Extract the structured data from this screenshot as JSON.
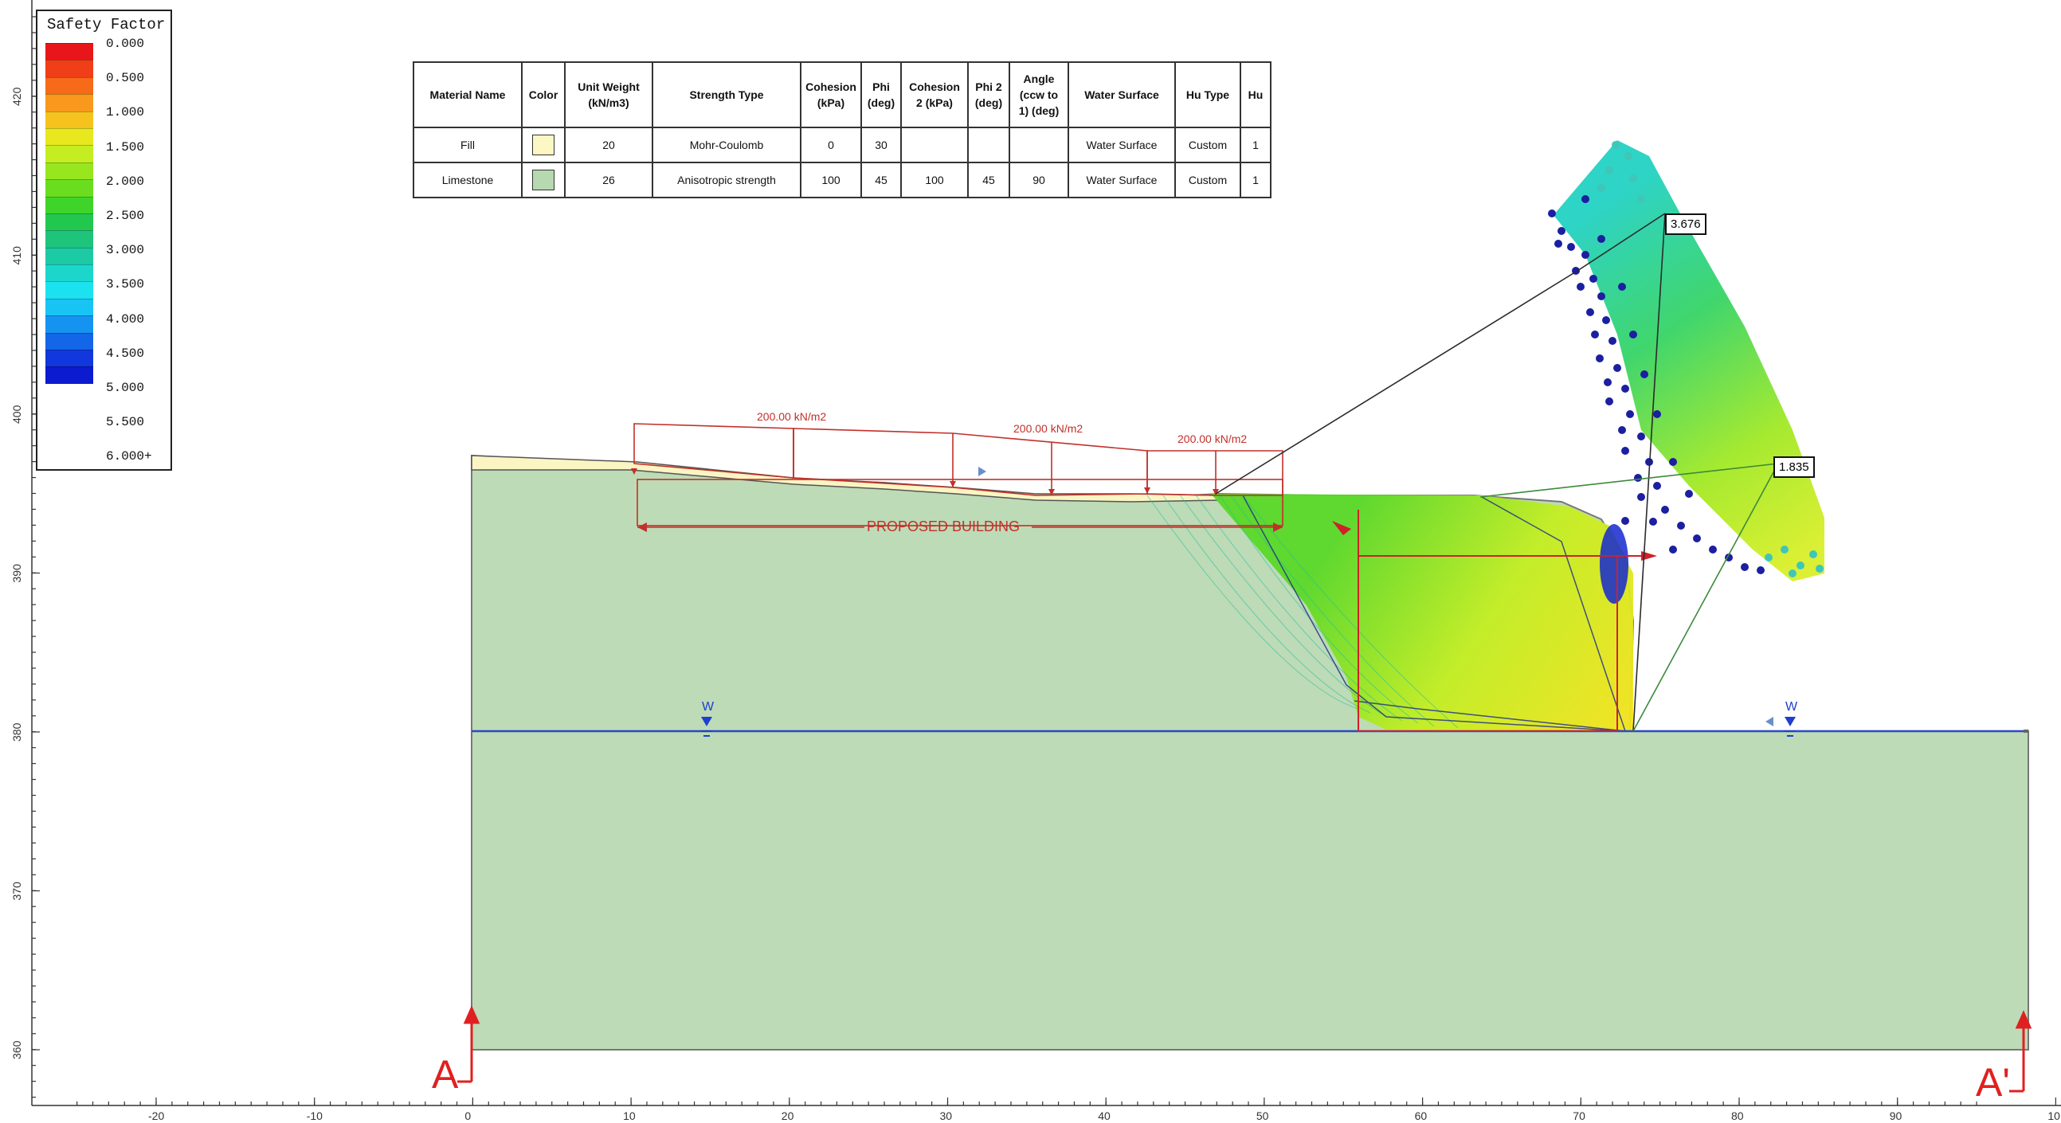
{
  "legend": {
    "title": "Safety Factor",
    "labels": [
      "0.000",
      "0.500",
      "1.000",
      "1.500",
      "2.000",
      "2.500",
      "3.000",
      "3.500",
      "4.000",
      "4.500",
      "5.000",
      "5.500",
      "6.000+"
    ],
    "colors": [
      "#e8161a",
      "#f03e18",
      "#f66a18",
      "#f8981c",
      "#f6c21e",
      "#e8e81e",
      "#c4ee22",
      "#98e61e",
      "#6ade1e",
      "#3ed42a",
      "#22c84e",
      "#1ec47a",
      "#1ccaa4",
      "#1cd6cc",
      "#1ce2f0",
      "#18c4f4",
      "#1494f0",
      "#1466e8",
      "#1038dc",
      "#0c1ad0"
    ]
  },
  "material_table": {
    "headers": [
      "Material Name",
      "Color",
      "Unit Weight (kN/m3)",
      "Strength Type",
      "Cohesion (kPa)",
      "Phi (deg)",
      "Cohesion 2 (kPa)",
      "Phi 2 (deg)",
      "Angle (ccw to 1) (deg)",
      "Water Surface",
      "Hu Type",
      "Hu"
    ],
    "rows": [
      {
        "name": "Fill",
        "color": "#fdf7c4",
        "unit_weight": "20",
        "strength_type": "Mohr-Coulomb",
        "cohesion": "0",
        "phi": "30",
        "cohesion2": "",
        "phi2": "",
        "angle": "",
        "water_surface": "Water Surface",
        "hu_type": "Custom",
        "hu": "1"
      },
      {
        "name": "Limestone",
        "color": "#b6d9b0",
        "unit_weight": "26",
        "strength_type": "Anisotropic strength",
        "cohesion": "100",
        "phi": "45",
        "cohesion2": "100",
        "phi2": "45",
        "angle": "90",
        "water_surface": "Water Surface",
        "hu_type": "Custom",
        "hu": "1"
      }
    ]
  },
  "loads": [
    "200.00 kN/m2",
    "200.00 kN/m2",
    "200.00 kN/m2"
  ],
  "building_label": "PROPOSED BUILDING",
  "factor_labels": [
    "3.676",
    "1.835"
  ],
  "water_markers": [
    "W",
    "W"
  ],
  "section_markers": [
    "A",
    "A'"
  ],
  "x_ticks": [
    "-20",
    "-10",
    "0",
    "10",
    "20",
    "30",
    "40",
    "50",
    "60",
    "70",
    "80",
    "90",
    "10"
  ],
  "y_ticks": [
    "420",
    "410",
    "400",
    "390",
    "380",
    "370",
    "360"
  ]
}
